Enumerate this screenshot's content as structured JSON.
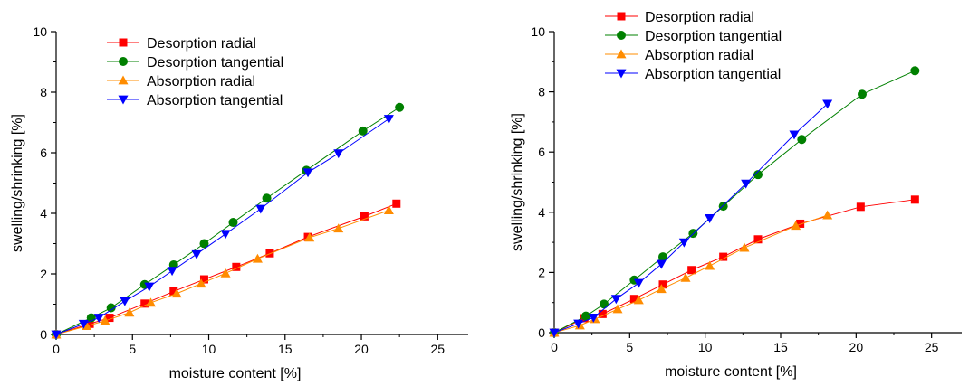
{
  "chart_data": [
    {
      "type": "line",
      "xlabel": "moisture content [%]",
      "ylabel": "swelling/shrinking [%]",
      "xlim": [
        0,
        27
      ],
      "ylim": [
        0,
        10
      ],
      "xticks": [
        0,
        5,
        10,
        15,
        20,
        25
      ],
      "yticks": [
        0,
        2,
        4,
        6,
        8,
        10
      ],
      "legend_position": "top-center",
      "series": [
        {
          "name": "Desorption radial",
          "color": "#ff0000",
          "marker": "square",
          "x": [
            0,
            2.2,
            3.5,
            5.8,
            7.7,
            9.7,
            11.8,
            14,
            16.5,
            20.2,
            22.3
          ],
          "y": [
            0,
            0.35,
            0.55,
            1.02,
            1.42,
            1.82,
            2.23,
            2.68,
            3.22,
            3.9,
            4.32
          ]
        },
        {
          "name": "Desorption tangential",
          "color": "#008000",
          "marker": "circle",
          "x": [
            0,
            2.3,
            3.6,
            5.8,
            7.7,
            9.7,
            11.6,
            13.8,
            16.4,
            20.1,
            22.5
          ],
          "y": [
            0,
            0.55,
            0.88,
            1.65,
            2.3,
            3.0,
            3.7,
            4.5,
            5.42,
            6.72,
            7.5
          ]
        },
        {
          "name": "Absorption radial",
          "color": "#ff8c00",
          "marker": "triangle-up",
          "x": [
            0,
            2.0,
            3.2,
            4.8,
            6.2,
            7.9,
            9.5,
            11.1,
            13.2,
            16.6,
            18.5,
            21.8
          ],
          "y": [
            0,
            0.28,
            0.45,
            0.72,
            1.05,
            1.35,
            1.68,
            2.02,
            2.5,
            3.2,
            3.5,
            4.1
          ]
        },
        {
          "name": "Absorption tangential",
          "color": "#0000ff",
          "marker": "triangle-down",
          "x": [
            0,
            1.8,
            2.8,
            4.5,
            6.1,
            7.6,
            9.2,
            11.1,
            13.4,
            16.5,
            18.5,
            21.8
          ],
          "y": [
            0,
            0.35,
            0.55,
            1.1,
            1.58,
            2.1,
            2.65,
            3.32,
            4.15,
            5.35,
            5.98,
            7.12
          ]
        }
      ]
    },
    {
      "type": "line",
      "xlabel": "moisture content [%]",
      "ylabel": "swelling/shrinking [%]",
      "xlim": [
        0,
        27
      ],
      "ylim": [
        0,
        10
      ],
      "xticks": [
        0,
        5,
        10,
        15,
        20,
        25
      ],
      "yticks": [
        0,
        2,
        4,
        6,
        8,
        10
      ],
      "legend_position": "top-center",
      "series": [
        {
          "name": "Desorption radial",
          "color": "#ff0000",
          "marker": "square",
          "x": [
            0,
            2.0,
            3.2,
            5.3,
            7.2,
            9.1,
            11.2,
            13.5,
            16.3,
            20.3,
            23.9
          ],
          "y": [
            0,
            0.48,
            0.62,
            1.12,
            1.6,
            2.08,
            2.52,
            3.1,
            3.62,
            4.18,
            4.42
          ]
        },
        {
          "name": "Desorption tangential",
          "color": "#008000",
          "marker": "circle",
          "x": [
            0,
            2.1,
            3.3,
            5.3,
            7.2,
            9.2,
            11.2,
            13.5,
            16.4,
            20.4,
            23.9
          ],
          "y": [
            0,
            0.55,
            0.95,
            1.75,
            2.52,
            3.3,
            4.2,
            5.25,
            6.42,
            7.92,
            8.7
          ]
        },
        {
          "name": "Absorption radial",
          "color": "#ff8c00",
          "marker": "triangle-up",
          "x": [
            0,
            1.7,
            2.7,
            4.2,
            5.6,
            7.1,
            8.7,
            10.3,
            12.6,
            16.0,
            18.1
          ],
          "y": [
            0,
            0.24,
            0.45,
            0.78,
            1.08,
            1.45,
            1.82,
            2.22,
            2.82,
            3.55,
            3.9
          ]
        },
        {
          "name": "Absorption tangential",
          "color": "#0000ff",
          "marker": "triangle-down",
          "x": [
            0,
            1.6,
            2.6,
            4.1,
            5.6,
            7.1,
            8.6,
            10.3,
            12.7,
            15.9,
            18.1
          ],
          "y": [
            0,
            0.3,
            0.5,
            1.12,
            1.65,
            2.28,
            3.0,
            3.8,
            4.95,
            6.58,
            7.6
          ]
        }
      ]
    }
  ]
}
